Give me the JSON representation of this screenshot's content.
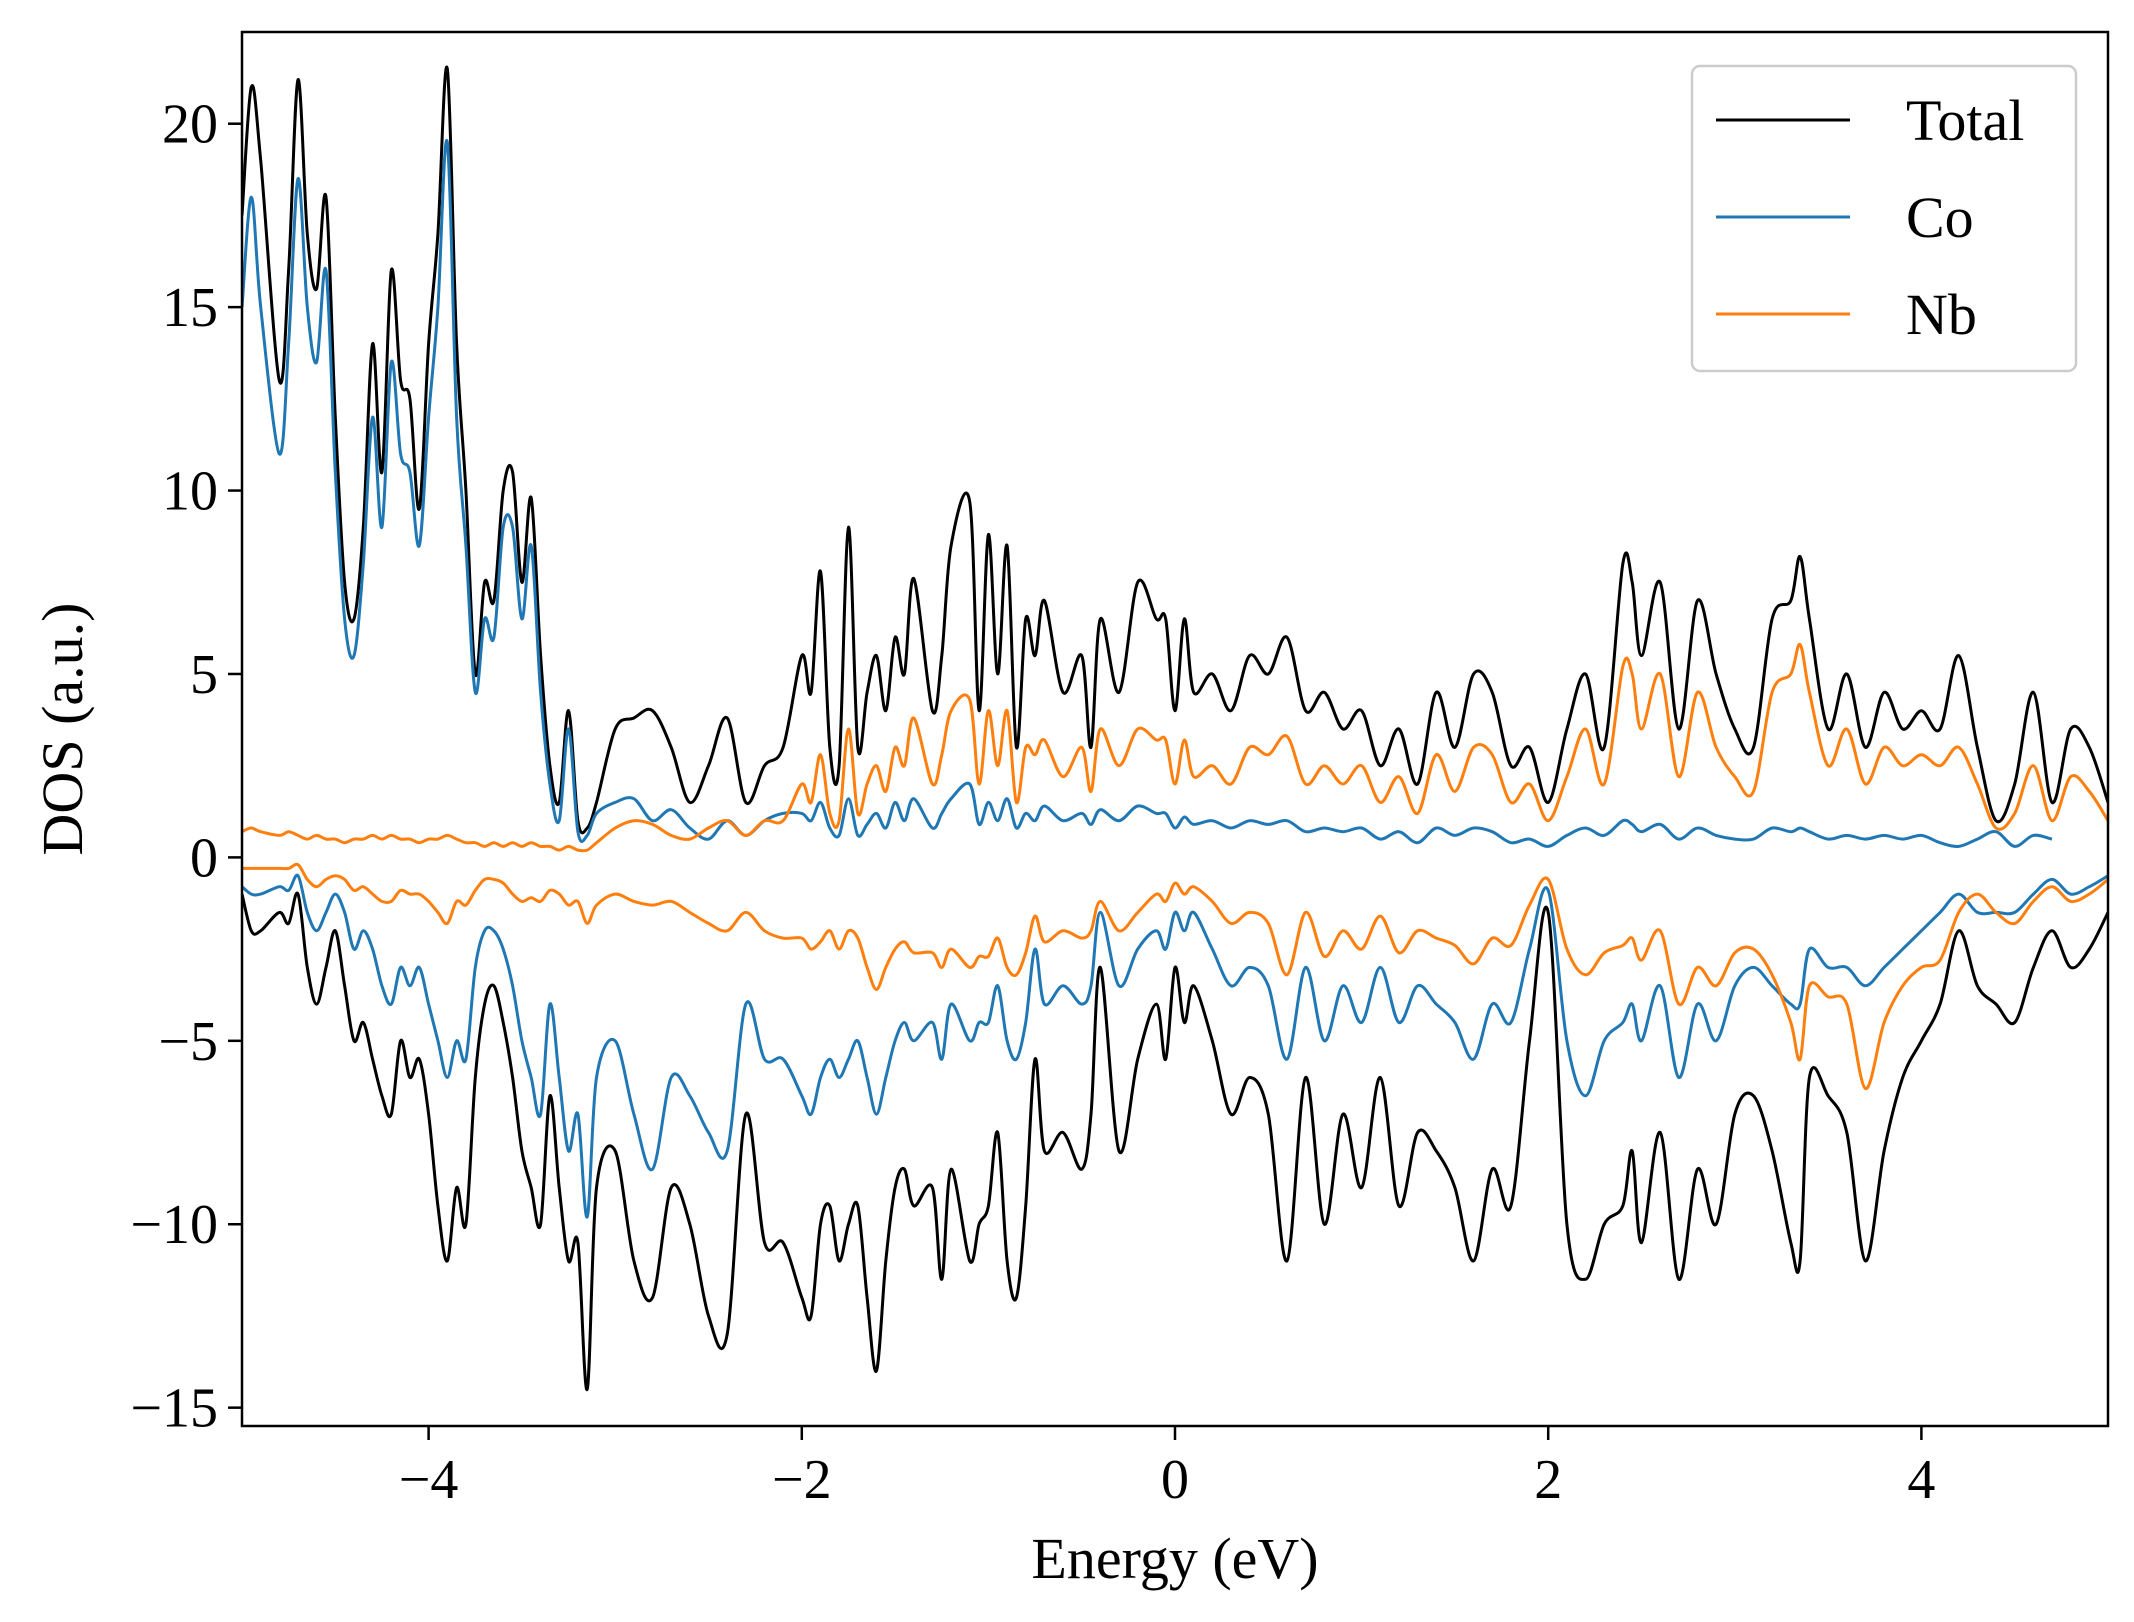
{
  "chart_data": {
    "type": "line",
    "title": "",
    "xlabel": "Energy (eV)",
    "ylabel": "DOS (a.u.)",
    "xlim": [
      -5,
      5
    ],
    "ylim": [
      -15.5,
      22.5
    ],
    "xticks": [
      -4,
      -2,
      0,
      2,
      4
    ],
    "xtick_labels": [
      "−4",
      "−2",
      "0",
      "2",
      "4"
    ],
    "yticks": [
      -15,
      -10,
      -5,
      0,
      5,
      10,
      15,
      20
    ],
    "ytick_labels": [
      "−15",
      "−10",
      "−5",
      "0",
      "5",
      "10",
      "15",
      "20"
    ],
    "grid": false,
    "legend_position": "top-right",
    "series": [
      {
        "name": "Total",
        "color": "#000000",
        "x_up": [
          -5.0,
          -4.95,
          -4.9,
          -4.8,
          -4.75,
          -4.7,
          -4.65,
          -4.6,
          -4.55,
          -4.5,
          -4.45,
          -4.4,
          -4.35,
          -4.3,
          -4.25,
          -4.2,
          -4.15,
          -4.1,
          -4.05,
          -4.0,
          -3.95,
          -3.9,
          -3.85,
          -3.8,
          -3.75,
          -3.7,
          -3.65,
          -3.6,
          -3.55,
          -3.5,
          -3.45,
          -3.4,
          -3.35,
          -3.3,
          -3.25,
          -3.2,
          -3.15,
          -3.1,
          -3.0,
          -2.9,
          -2.8,
          -2.7,
          -2.6,
          -2.5,
          -2.4,
          -2.3,
          -2.2,
          -2.1,
          -2.0,
          -1.95,
          -1.9,
          -1.85,
          -1.8,
          -1.75,
          -1.7,
          -1.65,
          -1.6,
          -1.55,
          -1.5,
          -1.45,
          -1.4,
          -1.3,
          -1.25,
          -1.2,
          -1.1,
          -1.05,
          -1.0,
          -0.95,
          -0.9,
          -0.85,
          -0.8,
          -0.75,
          -0.7,
          -0.6,
          -0.5,
          -0.45,
          -0.4,
          -0.3,
          -0.2,
          -0.1,
          -0.05,
          0.0,
          0.05,
          0.1,
          0.2,
          0.3,
          0.4,
          0.5,
          0.6,
          0.7,
          0.8,
          0.9,
          1.0,
          1.1,
          1.2,
          1.3,
          1.4,
          1.5,
          1.6,
          1.7,
          1.8,
          1.9,
          2.0,
          2.1,
          2.2,
          2.3,
          2.4,
          2.45,
          2.5,
          2.6,
          2.7,
          2.8,
          2.9,
          3.0,
          3.1,
          3.2,
          3.3,
          3.35,
          3.4,
          3.5,
          3.6,
          3.7,
          3.8,
          3.9,
          4.0,
          4.1,
          4.2,
          4.3,
          4.4,
          4.5,
          4.6,
          4.7,
          4.8,
          4.9,
          5.0
        ],
        "up": [
          17.5,
          21.0,
          19.0,
          13.0,
          16.0,
          21.2,
          17.0,
          15.5,
          18.0,
          12.0,
          7.5,
          6.5,
          9.0,
          14.0,
          10.5,
          16.0,
          13.0,
          12.5,
          9.5,
          14.0,
          17.0,
          21.5,
          14.0,
          10.0,
          5.0,
          7.5,
          7.0,
          10.0,
          10.5,
          7.5,
          9.8,
          5.5,
          2.5,
          1.5,
          4.0,
          1.0,
          0.8,
          1.5,
          3.5,
          3.8,
          4.0,
          3.0,
          1.5,
          2.5,
          3.8,
          1.5,
          2.5,
          3.0,
          5.5,
          4.5,
          7.8,
          3.0,
          2.5,
          9.0,
          3.0,
          4.5,
          5.5,
          4.0,
          6.0,
          5.0,
          7.6,
          4.0,
          5.5,
          8.5,
          9.7,
          4.0,
          8.8,
          5.0,
          8.5,
          3.0,
          6.5,
          5.5,
          7.0,
          4.5,
          5.5,
          3.0,
          6.5,
          4.5,
          7.5,
          6.5,
          6.5,
          4.0,
          6.5,
          4.5,
          5.0,
          4.0,
          5.5,
          5.0,
          6.0,
          4.0,
          4.5,
          3.5,
          4.0,
          2.5,
          3.5,
          2.0,
          4.5,
          3.0,
          5.0,
          4.5,
          2.5,
          3.0,
          1.5,
          3.5,
          5.0,
          3.0,
          8.0,
          7.5,
          5.5,
          7.5,
          3.5,
          7.0,
          5.0,
          3.5,
          3.0,
          6.5,
          7.0,
          8.2,
          6.5,
          3.5,
          5.0,
          3.0,
          4.5,
          3.5,
          4.0,
          3.5,
          5.5,
          3.0,
          1.0,
          2.0,
          4.5,
          1.5,
          3.5,
          3.0,
          1.5
        ],
        "x_dn": [
          -5.0,
          -4.95,
          -4.9,
          -4.8,
          -4.75,
          -4.7,
          -4.65,
          -4.6,
          -4.55,
          -4.5,
          -4.45,
          -4.4,
          -4.35,
          -4.3,
          -4.25,
          -4.2,
          -4.15,
          -4.1,
          -4.05,
          -4.0,
          -3.95,
          -3.9,
          -3.85,
          -3.8,
          -3.75,
          -3.7,
          -3.65,
          -3.6,
          -3.55,
          -3.5,
          -3.45,
          -3.4,
          -3.35,
          -3.3,
          -3.25,
          -3.2,
          -3.15,
          -3.1,
          -3.0,
          -2.9,
          -2.8,
          -2.7,
          -2.6,
          -2.5,
          -2.4,
          -2.3,
          -2.2,
          -2.1,
          -2.0,
          -1.95,
          -1.9,
          -1.85,
          -1.8,
          -1.75,
          -1.7,
          -1.65,
          -1.6,
          -1.55,
          -1.5,
          -1.45,
          -1.4,
          -1.3,
          -1.25,
          -1.2,
          -1.1,
          -1.05,
          -1.0,
          -0.95,
          -0.9,
          -0.85,
          -0.8,
          -0.75,
          -0.7,
          -0.6,
          -0.5,
          -0.45,
          -0.4,
          -0.3,
          -0.2,
          -0.1,
          -0.05,
          0.0,
          0.05,
          0.1,
          0.2,
          0.3,
          0.4,
          0.5,
          0.6,
          0.7,
          0.8,
          0.9,
          1.0,
          1.1,
          1.2,
          1.3,
          1.4,
          1.5,
          1.6,
          1.7,
          1.8,
          1.9,
          2.0,
          2.1,
          2.2,
          2.3,
          2.4,
          2.45,
          2.5,
          2.6,
          2.7,
          2.8,
          2.9,
          3.0,
          3.1,
          3.2,
          3.3,
          3.35,
          3.4,
          3.5,
          3.6,
          3.7,
          3.8,
          3.9,
          4.0,
          4.1,
          4.2,
          4.3,
          4.4,
          4.5,
          4.6,
          4.7,
          4.8,
          4.9,
          5.0
        ],
        "dn": [
          -1.0,
          -2.0,
          -2.0,
          -1.5,
          -1.8,
          -1.0,
          -3.0,
          -4.0,
          -3.0,
          -2.0,
          -3.5,
          -5.0,
          -4.5,
          -5.5,
          -6.5,
          -7.0,
          -5.0,
          -6.0,
          -5.5,
          -7.0,
          -9.5,
          -11.0,
          -9.0,
          -10.0,
          -6.0,
          -4.0,
          -3.5,
          -4.5,
          -6.0,
          -8.0,
          -9.0,
          -10.0,
          -6.5,
          -9.0,
          -11.0,
          -10.5,
          -14.5,
          -9.0,
          -8.0,
          -11.0,
          -12.0,
          -9.0,
          -10.0,
          -12.5,
          -13.0,
          -7.0,
          -10.5,
          -10.5,
          -12.0,
          -12.5,
          -10.0,
          -9.5,
          -11.0,
          -10.0,
          -9.5,
          -12.0,
          -14.0,
          -11.0,
          -9.0,
          -8.5,
          -9.5,
          -9.0,
          -11.5,
          -8.5,
          -11.0,
          -10.0,
          -9.5,
          -7.5,
          -11.0,
          -12.0,
          -9.5,
          -5.5,
          -8.0,
          -7.5,
          -8.5,
          -7.0,
          -3.0,
          -8.0,
          -5.5,
          -4.0,
          -5.5,
          -3.0,
          -4.5,
          -3.5,
          -5.0,
          -7.0,
          -6.0,
          -7.0,
          -11.0,
          -6.0,
          -10.0,
          -7.0,
          -9.0,
          -6.0,
          -9.5,
          -7.5,
          -8.0,
          -9.0,
          -11.0,
          -8.5,
          -9.5,
          -5.0,
          -1.5,
          -10.0,
          -11.5,
          -10.0,
          -9.5,
          -8.0,
          -10.5,
          -7.5,
          -11.5,
          -8.5,
          -10.0,
          -7.0,
          -6.5,
          -8.0,
          -10.5,
          -11.0,
          -6.0,
          -6.5,
          -7.5,
          -11.0,
          -8.0,
          -6.0,
          -5.0,
          -4.0,
          -2.0,
          -3.5,
          -4.0,
          -4.5,
          -3.0,
          -2.0,
          -3.0,
          -2.5,
          -1.5,
          -2.5,
          -3.5
        ],
        "note": ""
      },
      {
        "name": "Co",
        "color": "#1f77b4",
        "up": [
          15.0,
          18.0,
          15.0,
          11.0,
          14.0,
          18.5,
          15.0,
          13.5,
          16.0,
          10.5,
          6.5,
          5.5,
          8.0,
          12.0,
          9.0,
          13.5,
          11.0,
          10.5,
          8.5,
          12.0,
          15.0,
          19.5,
          12.0,
          8.5,
          4.5,
          6.5,
          6.0,
          9.0,
          9.0,
          6.5,
          8.5,
          4.5,
          2.0,
          1.0,
          3.5,
          0.7,
          0.6,
          1.2,
          1.5,
          1.6,
          1.0,
          1.3,
          0.8,
          0.5,
          1.0,
          0.6,
          1.0,
          1.2,
          1.2,
          1.0,
          1.5,
          0.8,
          0.6,
          1.6,
          0.6,
          0.9,
          1.2,
          0.8,
          1.5,
          1.0,
          1.6,
          0.8,
          1.2,
          1.6,
          2.0,
          0.9,
          1.5,
          1.0,
          1.6,
          0.8,
          1.2,
          1.0,
          1.4,
          1.0,
          1.2,
          0.9,
          1.3,
          1.0,
          1.4,
          1.2,
          1.2,
          0.8,
          1.1,
          0.9,
          1.0,
          0.8,
          1.0,
          0.9,
          1.0,
          0.7,
          0.8,
          0.7,
          0.8,
          0.5,
          0.7,
          0.4,
          0.8,
          0.6,
          0.8,
          0.7,
          0.4,
          0.5,
          0.3,
          0.6,
          0.8,
          0.6,
          1.0,
          0.9,
          0.7,
          0.9,
          0.5,
          0.8,
          0.6,
          0.5,
          0.5,
          0.8,
          0.7,
          0.8,
          0.7,
          0.5,
          0.6,
          0.5,
          0.6,
          0.5,
          0.6,
          0.4,
          0.3,
          0.5,
          0.7,
          0.3,
          0.6,
          0.5,
          0.4
        ],
        "dn": [
          -0.8,
          -1.0,
          -1.0,
          -0.8,
          -0.9,
          -0.5,
          -1.5,
          -2.0,
          -1.5,
          -1.0,
          -1.5,
          -2.5,
          -2.0,
          -2.5,
          -3.5,
          -4.0,
          -3.0,
          -3.5,
          -3.0,
          -4.0,
          -5.0,
          -6.0,
          -5.0,
          -5.5,
          -3.0,
          -2.0,
          -2.0,
          -2.5,
          -3.5,
          -5.0,
          -6.0,
          -7.0,
          -4.0,
          -6.0,
          -8.0,
          -7.0,
          -9.8,
          -6.0,
          -5.0,
          -7.0,
          -8.5,
          -6.0,
          -6.5,
          -7.5,
          -8.0,
          -4.0,
          -5.5,
          -5.5,
          -6.5,
          -7.0,
          -6.0,
          -5.5,
          -6.0,
          -5.5,
          -5.0,
          -6.0,
          -7.0,
          -6.0,
          -5.0,
          -4.5,
          -5.0,
          -4.5,
          -5.5,
          -4.0,
          -5.0,
          -4.5,
          -4.5,
          -3.5,
          -5.0,
          -5.5,
          -4.5,
          -2.5,
          -4.0,
          -3.5,
          -4.0,
          -3.5,
          -1.5,
          -3.5,
          -2.5,
          -2.0,
          -2.5,
          -1.5,
          -2.0,
          -1.5,
          -2.5,
          -3.5,
          -3.0,
          -3.5,
          -5.5,
          -3.0,
          -5.0,
          -3.5,
          -4.5,
          -3.0,
          -4.5,
          -3.5,
          -4.0,
          -4.5,
          -5.5,
          -4.0,
          -4.5,
          -2.5,
          -0.9,
          -5.0,
          -6.5,
          -5.0,
          -4.5,
          -4.0,
          -5.0,
          -3.5,
          -6.0,
          -4.0,
          -5.0,
          -3.5,
          -3.0,
          -3.5,
          -4.0,
          -4.0,
          -2.5,
          -3.0,
          -3.0,
          -3.5,
          -3.0,
          -2.5,
          -2.0,
          -1.5,
          -1.0,
          -1.5,
          -1.5,
          -1.5,
          -1.0,
          -0.6,
          -1.0,
          -0.8,
          -0.5,
          -0.8,
          -0.9
        ]
      },
      {
        "name": "Nb",
        "color": "#ff7f0e",
        "up": [
          0.7,
          0.8,
          0.7,
          0.6,
          0.7,
          0.6,
          0.5,
          0.6,
          0.5,
          0.5,
          0.4,
          0.5,
          0.5,
          0.6,
          0.5,
          0.6,
          0.5,
          0.5,
          0.4,
          0.5,
          0.5,
          0.6,
          0.5,
          0.4,
          0.4,
          0.3,
          0.4,
          0.3,
          0.4,
          0.3,
          0.4,
          0.3,
          0.3,
          0.2,
          0.3,
          0.2,
          0.2,
          0.4,
          0.8,
          1.0,
          0.9,
          0.6,
          0.5,
          0.8,
          1.0,
          0.6,
          1.0,
          1.0,
          2.0,
          1.5,
          2.8,
          1.2,
          1.0,
          3.5,
          1.2,
          2.0,
          2.5,
          1.8,
          3.0,
          2.5,
          3.8,
          2.0,
          2.8,
          4.0,
          4.3,
          2.0,
          4.0,
          2.5,
          4.0,
          1.5,
          3.0,
          2.8,
          3.2,
          2.2,
          3.0,
          1.8,
          3.5,
          2.5,
          3.5,
          3.2,
          3.2,
          2.0,
          3.2,
          2.2,
          2.5,
          2.0,
          3.0,
          2.8,
          3.3,
          2.0,
          2.5,
          2.0,
          2.5,
          1.5,
          2.2,
          1.2,
          2.8,
          1.8,
          3.0,
          2.8,
          1.5,
          2.0,
          1.0,
          2.2,
          3.5,
          2.0,
          5.2,
          5.0,
          3.5,
          5.0,
          2.2,
          4.5,
          3.0,
          2.2,
          1.8,
          4.5,
          5.0,
          5.8,
          4.5,
          2.5,
          3.5,
          2.0,
          3.0,
          2.5,
          2.8,
          2.5,
          3.0,
          2.0,
          0.8,
          1.2,
          2.5,
          1.0,
          2.2,
          1.8,
          1.0
        ],
        "dn": [
          -0.3,
          -0.3,
          -0.3,
          -0.3,
          -0.3,
          -0.2,
          -0.6,
          -0.8,
          -0.6,
          -0.5,
          -0.6,
          -0.9,
          -0.8,
          -1.0,
          -1.2,
          -1.2,
          -0.9,
          -1.0,
          -1.0,
          -1.2,
          -1.5,
          -1.8,
          -1.2,
          -1.3,
          -0.9,
          -0.6,
          -0.6,
          -0.7,
          -1.0,
          -1.2,
          -1.1,
          -1.2,
          -0.9,
          -1.0,
          -1.3,
          -1.2,
          -1.8,
          -1.3,
          -1.0,
          -1.2,
          -1.3,
          -1.2,
          -1.5,
          -1.8,
          -2.0,
          -1.5,
          -2.0,
          -2.2,
          -2.2,
          -2.5,
          -2.3,
          -2.0,
          -2.5,
          -2.0,
          -2.2,
          -3.0,
          -3.6,
          -3.0,
          -2.5,
          -2.3,
          -2.6,
          -2.6,
          -3.0,
          -2.5,
          -3.0,
          -2.7,
          -2.7,
          -2.2,
          -3.0,
          -3.2,
          -2.6,
          -1.6,
          -2.3,
          -2.0,
          -2.2,
          -2.0,
          -1.2,
          -2.0,
          -1.5,
          -1.0,
          -1.2,
          -0.7,
          -1.0,
          -0.8,
          -1.2,
          -1.8,
          -1.5,
          -1.8,
          -3.2,
          -1.5,
          -2.7,
          -2.0,
          -2.5,
          -1.6,
          -2.6,
          -2.0,
          -2.2,
          -2.4,
          -2.9,
          -2.2,
          -2.4,
          -1.3,
          -0.6,
          -2.5,
          -3.2,
          -2.6,
          -2.4,
          -2.2,
          -2.8,
          -2.0,
          -4.0,
          -3.0,
          -3.5,
          -2.6,
          -2.5,
          -3.2,
          -4.5,
          -5.5,
          -3.5,
          -3.8,
          -4.0,
          -6.3,
          -4.5,
          -3.5,
          -3.0,
          -2.8,
          -1.5,
          -1.0,
          -1.5,
          -1.8,
          -1.2,
          -0.8,
          -1.2,
          -1.0,
          -0.6,
          -1.2,
          -1.7
        ]
      }
    ]
  }
}
